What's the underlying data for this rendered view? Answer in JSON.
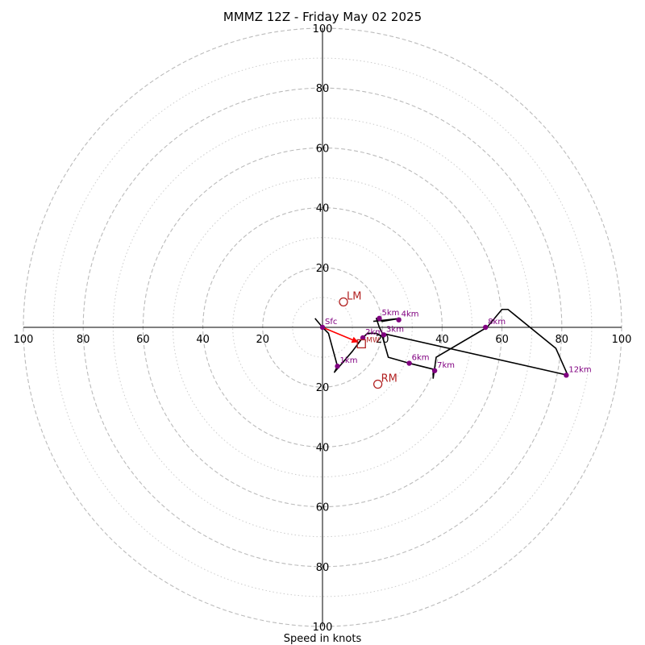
{
  "chart_data": {
    "type": "scatter",
    "title": "MMMZ 12Z - Friday May 02 2025",
    "xlabel": "Speed in knots",
    "ylabel": "",
    "xlim": [
      -100,
      100
    ],
    "ylim": [
      -100,
      100
    ],
    "rings": [
      20,
      40,
      60,
      80,
      100
    ],
    "minor_rings": [
      10,
      30,
      50,
      70,
      90
    ],
    "axis_tick_values": [
      20,
      40,
      60,
      80,
      100
    ],
    "axis_tick_labels": [
      "20",
      "40",
      "60",
      "80",
      "100"
    ],
    "grid": true,
    "colors": {
      "trace": "#000000",
      "points": "#800080",
      "motion": "#b22222",
      "shear_vector": "#ff0000",
      "grid": "#bbbbbb"
    },
    "hodograph_trace": [
      [
        -2.5,
        3
      ],
      [
        0,
        0
      ],
      [
        2,
        -2
      ],
      [
        5,
        -13
      ],
      [
        4,
        -15
      ],
      [
        10,
        -8
      ],
      [
        13,
        -4
      ],
      [
        15,
        -2
      ],
      [
        18,
        -2
      ],
      [
        20,
        -3
      ],
      [
        22,
        -10
      ],
      [
        29,
        -12
      ],
      [
        37,
        -14
      ],
      [
        37,
        -17
      ],
      [
        38,
        -10
      ],
      [
        55,
        0
      ],
      [
        60,
        6
      ],
      [
        62,
        6
      ],
      [
        78,
        -7
      ],
      [
        82,
        -16
      ],
      [
        20,
        -2
      ],
      [
        19,
        0
      ],
      [
        18,
        3
      ],
      [
        20,
        2
      ],
      [
        26,
        3
      ],
      [
        17,
        2
      ]
    ],
    "height_points": [
      {
        "label": "Sfc",
        "x": 0,
        "y": 0
      },
      {
        "label": "1km",
        "x": 5,
        "y": -13
      },
      {
        "label": "2km",
        "x": 13.5,
        "y": -3.5
      },
      {
        "label": "3km",
        "x": 20.5,
        "y": -2.5
      },
      {
        "label": "4km",
        "x": 25.5,
        "y": 2.5
      },
      {
        "label": "5km",
        "x": 19,
        "y": 3
      },
      {
        "label": "6km",
        "x": 29,
        "y": -12
      },
      {
        "label": "7km",
        "x": 37.5,
        "y": -14.5
      },
      {
        "label": "8km",
        "x": 54.5,
        "y": 0
      },
      {
        "label": "12km",
        "x": 81.5,
        "y": -16
      }
    ],
    "storm_motion": [
      {
        "label": "LM",
        "x": 7,
        "y": 8.5
      },
      {
        "label": "RM",
        "x": 18.5,
        "y": -19
      }
    ],
    "mean_wind": {
      "label": "MW",
      "x": 13,
      "y": -5.5
    },
    "shear_vector": {
      "from": [
        0,
        0
      ],
      "to": [
        12,
        -5
      ]
    }
  }
}
